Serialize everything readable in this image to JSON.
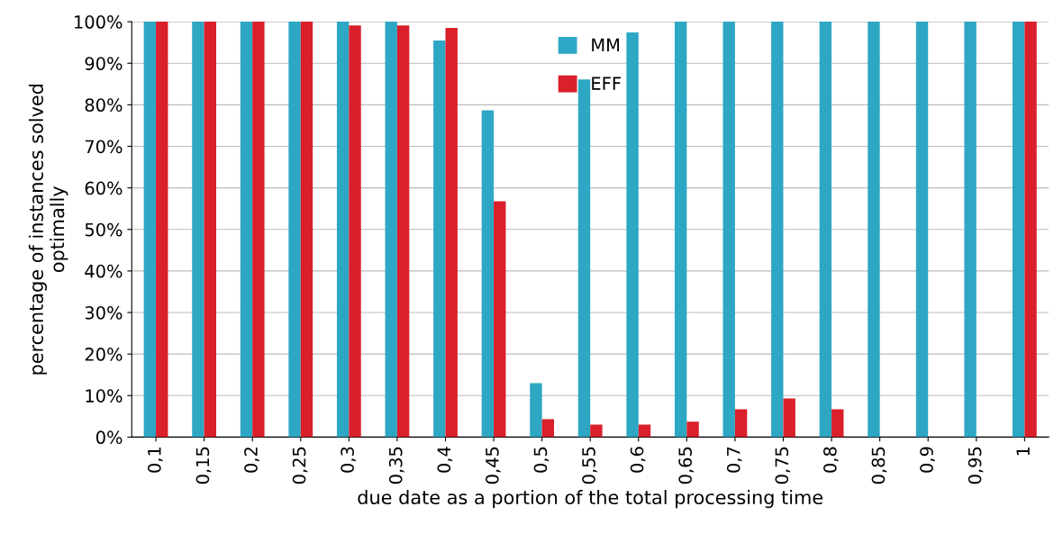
{
  "chart_data": {
    "type": "bar",
    "categories": [
      "0,1",
      "0,15",
      "0,2",
      "0,25",
      "0,3",
      "0,35",
      "0,4",
      "0,45",
      "0,5",
      "0,55",
      "0,6",
      "0,65",
      "0,7",
      "0,75",
      "0,8",
      "0,85",
      "0,9",
      "0,95",
      "1"
    ],
    "series": [
      {
        "name": "MM",
        "color": "#2ea7c4",
        "values": [
          100,
          100,
          100,
          100,
          100,
          100,
          95.5,
          78.7,
          13.0,
          86.1,
          97.4,
          100,
          100,
          100,
          100,
          100,
          100,
          100,
          100
        ]
      },
      {
        "name": "EFF",
        "color": "#d9202b",
        "values": [
          100,
          100,
          100,
          100,
          99.1,
          99.1,
          98.5,
          56.8,
          4.3,
          3.0,
          3.0,
          3.7,
          6.7,
          9.3,
          6.7,
          0,
          0,
          0,
          100
        ]
      }
    ],
    "xlabel": "due date as a portion of the total processing time",
    "ylabel": "percentage of instances solved\noptimally",
    "ylim": [
      0,
      100
    ],
    "yticks": [
      {
        "value": 0,
        "label": "0%"
      },
      {
        "value": 10,
        "label": "10%"
      },
      {
        "value": 20,
        "label": "20%"
      },
      {
        "value": 30,
        "label": "30%"
      },
      {
        "value": 40,
        "label": "40%"
      },
      {
        "value": 50,
        "label": "50%"
      },
      {
        "value": 60,
        "label": "60%"
      },
      {
        "value": 70,
        "label": "70%"
      },
      {
        "value": 80,
        "label": "80%"
      },
      {
        "value": 90,
        "label": "90%"
      },
      {
        "value": 100,
        "label": "100%"
      }
    ],
    "grid": "y",
    "legend": "top"
  }
}
